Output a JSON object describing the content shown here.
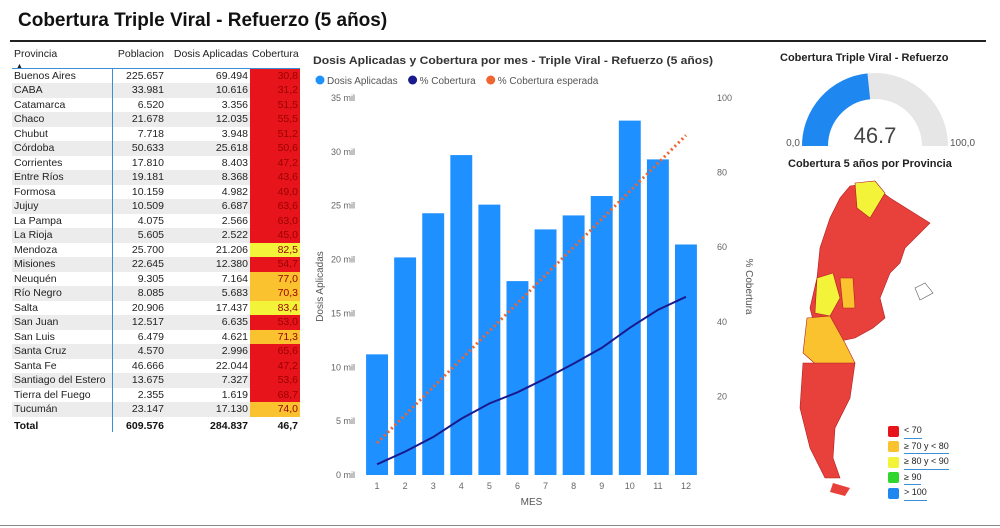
{
  "title": "Cobertura Triple Viral - Refuerzo (5 años)",
  "table": {
    "headers": [
      "Provincia",
      "Poblacion",
      "Dosis Aplicadas",
      "Cobertura"
    ],
    "rows": [
      [
        "Buenos Aires",
        "225.657",
        "69.494",
        "30,8"
      ],
      [
        "CABA",
        "33.981",
        "10.616",
        "31,2"
      ],
      [
        "Catamarca",
        "6.520",
        "3.356",
        "51,5"
      ],
      [
        "Chaco",
        "21.678",
        "12.035",
        "55,5"
      ],
      [
        "Chubut",
        "7.718",
        "3.948",
        "51,2"
      ],
      [
        "Córdoba",
        "50.633",
        "25.618",
        "50,6"
      ],
      [
        "Corrientes",
        "17.810",
        "8.403",
        "47,2"
      ],
      [
        "Entre Ríos",
        "19.181",
        "8.368",
        "43,6"
      ],
      [
        "Formosa",
        "10.159",
        "4.982",
        "49,0"
      ],
      [
        "Jujuy",
        "10.509",
        "6.687",
        "63,6"
      ],
      [
        "La Pampa",
        "4.075",
        "2.566",
        "63,0"
      ],
      [
        "La Rioja",
        "5.605",
        "2.522",
        "45,0"
      ],
      [
        "Mendoza",
        "25.700",
        "21.206",
        "82,5"
      ],
      [
        "Misiones",
        "22.645",
        "12.380",
        "54,7"
      ],
      [
        "Neuquén",
        "9.305",
        "7.164",
        "77,0"
      ],
      [
        "Río Negro",
        "8.085",
        "5.683",
        "70,3"
      ],
      [
        "Salta",
        "20.906",
        "17.437",
        "83,4"
      ],
      [
        "San Juan",
        "12.517",
        "6.635",
        "53,0"
      ],
      [
        "San Luis",
        "6.479",
        "4.621",
        "71,3"
      ],
      [
        "Santa Cruz",
        "4.570",
        "2.996",
        "65,6"
      ],
      [
        "Santa Fe",
        "46.666",
        "22.044",
        "47,2"
      ],
      [
        "Santiago del Estero",
        "13.675",
        "7.327",
        "53,6"
      ],
      [
        "Tierra del Fuego",
        "2.355",
        "1.619",
        "68,7"
      ],
      [
        "Tucumán",
        "23.147",
        "17.130",
        "74,0"
      ]
    ],
    "total": [
      "Total",
      "609.576",
      "284.837",
      "46,7"
    ]
  },
  "colors": {
    "red": "#e8141b",
    "orange": "#f9c22e",
    "yellow": "#f3f33a",
    "green": "#2ed62e",
    "blue": "#1e88f0",
    "bar": "#1e90ff",
    "line": "#1a1a8c",
    "expected": "#f0642d"
  },
  "chart_data": {
    "type": "bar",
    "title": "Dosis Aplicadas y Cobertura por mes - Triple Viral - Refuerzo (5 años)",
    "xlabel": "MES",
    "ylabel": "Dosis Aplicadas",
    "y2label": "% Cobertura",
    "categories": [
      "1",
      "2",
      "3",
      "4",
      "5",
      "6",
      "7",
      "8",
      "9",
      "10",
      "11",
      "12"
    ],
    "y_ticks": [
      "0 mil",
      "5 mil",
      "10 mil",
      "15 mil",
      "20 mil",
      "25 mil",
      "30 mil",
      "35 mil"
    ],
    "y2_ticks": [
      "20",
      "40",
      "60",
      "80",
      "100"
    ],
    "ylim": [
      0,
      35000
    ],
    "y2lim": [
      0,
      100
    ],
    "legend": [
      "Dosis Aplicadas",
      "% Cobertura",
      "% Cobertura esperada"
    ],
    "series": [
      {
        "name": "Dosis Aplicadas",
        "type": "bar",
        "values": [
          11200,
          20200,
          24300,
          29700,
          25100,
          18000,
          22800,
          24100,
          25900,
          32900,
          29300,
          21400
        ]
      },
      {
        "name": "% Cobertura",
        "type": "line",
        "values": [
          1.8,
          5.2,
          9.1,
          14.0,
          18.1,
          21.1,
          24.8,
          28.8,
          33.0,
          38.4,
          43.2,
          46.7
        ]
      },
      {
        "name": "% Cobertura esperada",
        "type": "line",
        "values": [
          7.5,
          15,
          22.5,
          30,
          37.5,
          45,
          52.5,
          60,
          67.5,
          75,
          82.5,
          90
        ]
      }
    ]
  },
  "gauge": {
    "title": "Cobertura Triple Viral - Refuerzo",
    "value": "46.7",
    "fraction": 0.467,
    "min": "0,0",
    "max": "100,0"
  },
  "map": {
    "title": "Cobertura 5 años por Provincia",
    "legend": [
      "< 70",
      "≥ 70 y < 80",
      "≥ 80 y < 90",
      "≥ 90",
      "> 100"
    ]
  }
}
